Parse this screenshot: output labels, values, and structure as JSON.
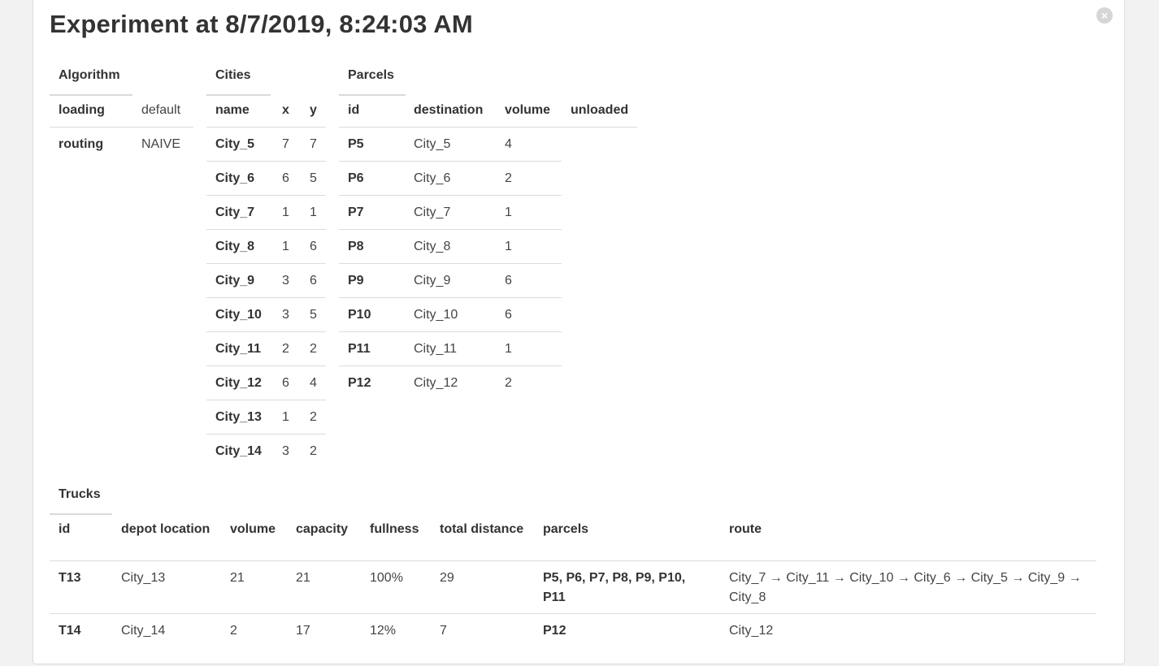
{
  "title": "Experiment at 8/7/2019, 8:24:03 AM",
  "close_icon": "×",
  "algorithm": {
    "label": "Algorithm",
    "rows": [
      {
        "key": "loading",
        "value": "default"
      },
      {
        "key": "routing",
        "value": "NAIVE"
      }
    ]
  },
  "cities": {
    "label": "Cities",
    "headers": [
      "name",
      "x",
      "y"
    ],
    "rows": [
      [
        "City_5",
        "7",
        "7"
      ],
      [
        "City_6",
        "6",
        "5"
      ],
      [
        "City_7",
        "1",
        "1"
      ],
      [
        "City_8",
        "1",
        "6"
      ],
      [
        "City_9",
        "3",
        "6"
      ],
      [
        "City_10",
        "3",
        "5"
      ],
      [
        "City_11",
        "2",
        "2"
      ],
      [
        "City_12",
        "6",
        "4"
      ],
      [
        "City_13",
        "1",
        "2"
      ],
      [
        "City_14",
        "3",
        "2"
      ]
    ]
  },
  "parcels": {
    "label": "Parcels",
    "headers": [
      "id",
      "destination",
      "volume",
      "unloaded"
    ],
    "rows": [
      [
        "P5",
        "City_5",
        "4",
        ""
      ],
      [
        "P6",
        "City_6",
        "2",
        ""
      ],
      [
        "P7",
        "City_7",
        "1",
        ""
      ],
      [
        "P8",
        "City_8",
        "1",
        ""
      ],
      [
        "P9",
        "City_9",
        "6",
        ""
      ],
      [
        "P10",
        "City_10",
        "6",
        ""
      ],
      [
        "P11",
        "City_11",
        "1",
        ""
      ],
      [
        "P12",
        "City_12",
        "2",
        ""
      ]
    ]
  },
  "trucks": {
    "label": "Trucks",
    "headers": [
      "id",
      "depot location",
      "volume",
      "capacity",
      "fullness",
      "total distance",
      "parcels",
      "route"
    ],
    "rows": [
      [
        "T13",
        "City_13",
        "21",
        "21",
        "100%",
        "29",
        "P5, P6, P7, P8, P9, P10, P11",
        "City_7 → City_11 → City_10 → City_6 → City_5 → City_9 → City_8"
      ],
      [
        "T14",
        "City_14",
        "2",
        "17",
        "12%",
        "7",
        "P12",
        "City_12"
      ]
    ]
  }
}
